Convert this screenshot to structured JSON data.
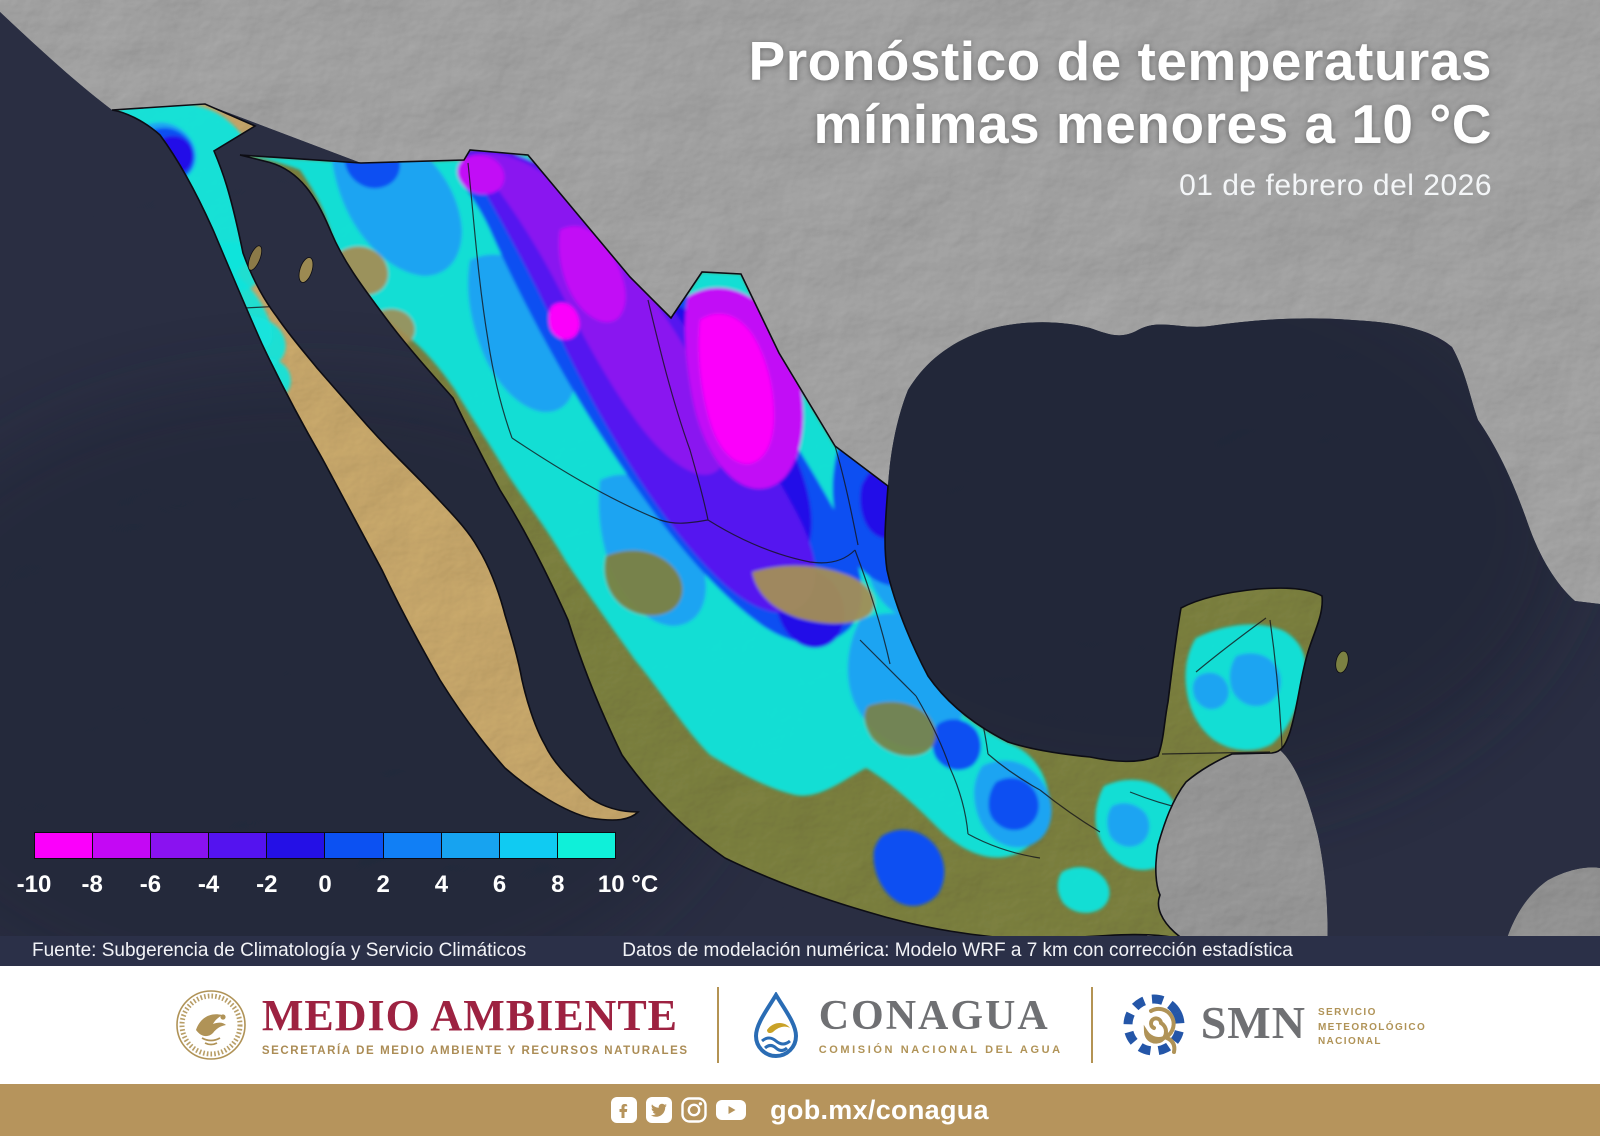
{
  "title": {
    "line1": "Pronóstico de temperaturas",
    "line2": "mínimas menores a 10 °C",
    "date": "01 de febrero del 2026"
  },
  "legend": {
    "ticks": [
      "-10",
      "-8",
      "-6",
      "-4",
      "-2",
      "0",
      "2",
      "4",
      "6",
      "8",
      "10 °C"
    ],
    "colors": [
      "#fb00fb",
      "#c408f4",
      "#8a12f0",
      "#5413ef",
      "#2410e6",
      "#0c51f2",
      "#117ff5",
      "#17a3f0",
      "#10cbf2",
      "#0ff0d9"
    ],
    "unit": "°C",
    "range_min": -10,
    "range_max": 10
  },
  "source": {
    "left": "Fuente: Subgerencia de Climatología y Servicio Climáticos",
    "right": "Datos de modelación numérica: Modelo WRF a 7 km con corrección estadística"
  },
  "footer": {
    "medio_ambiente": {
      "title": "MEDIO AMBIENTE",
      "subtitle": "SECRETARÍA DE MEDIO AMBIENTE Y RECURSOS NATURALES",
      "icon": "mexico-eagle-seal-icon"
    },
    "conagua": {
      "title": "CONAGUA",
      "subtitle": "COMISIÓN NACIONAL DEL AGUA",
      "icon": "water-drop-eagle-icon"
    },
    "smn": {
      "title": "SMN",
      "subtitle_lines": [
        "SERVICIO",
        "METEOROLÓGICO",
        "NACIONAL"
      ],
      "icon": "meteorology-spiral-icon"
    },
    "bottom_bar": {
      "url": "gob.mx/conagua",
      "social_icons": [
        "facebook-icon",
        "twitter-icon",
        "instagram-icon",
        "youtube-icon"
      ]
    }
  },
  "colors": {
    "ocean": "#2a2f44",
    "us_land_gray": "#ababab",
    "mexico_terrain_olive": "#7d8140",
    "baja_terrain_tan": "#c9a96c",
    "brand_red": "#9d2241",
    "brand_gold": "#b6945c",
    "logo_gray": "#6f7073",
    "source_bar_bg": "#2b3048"
  }
}
